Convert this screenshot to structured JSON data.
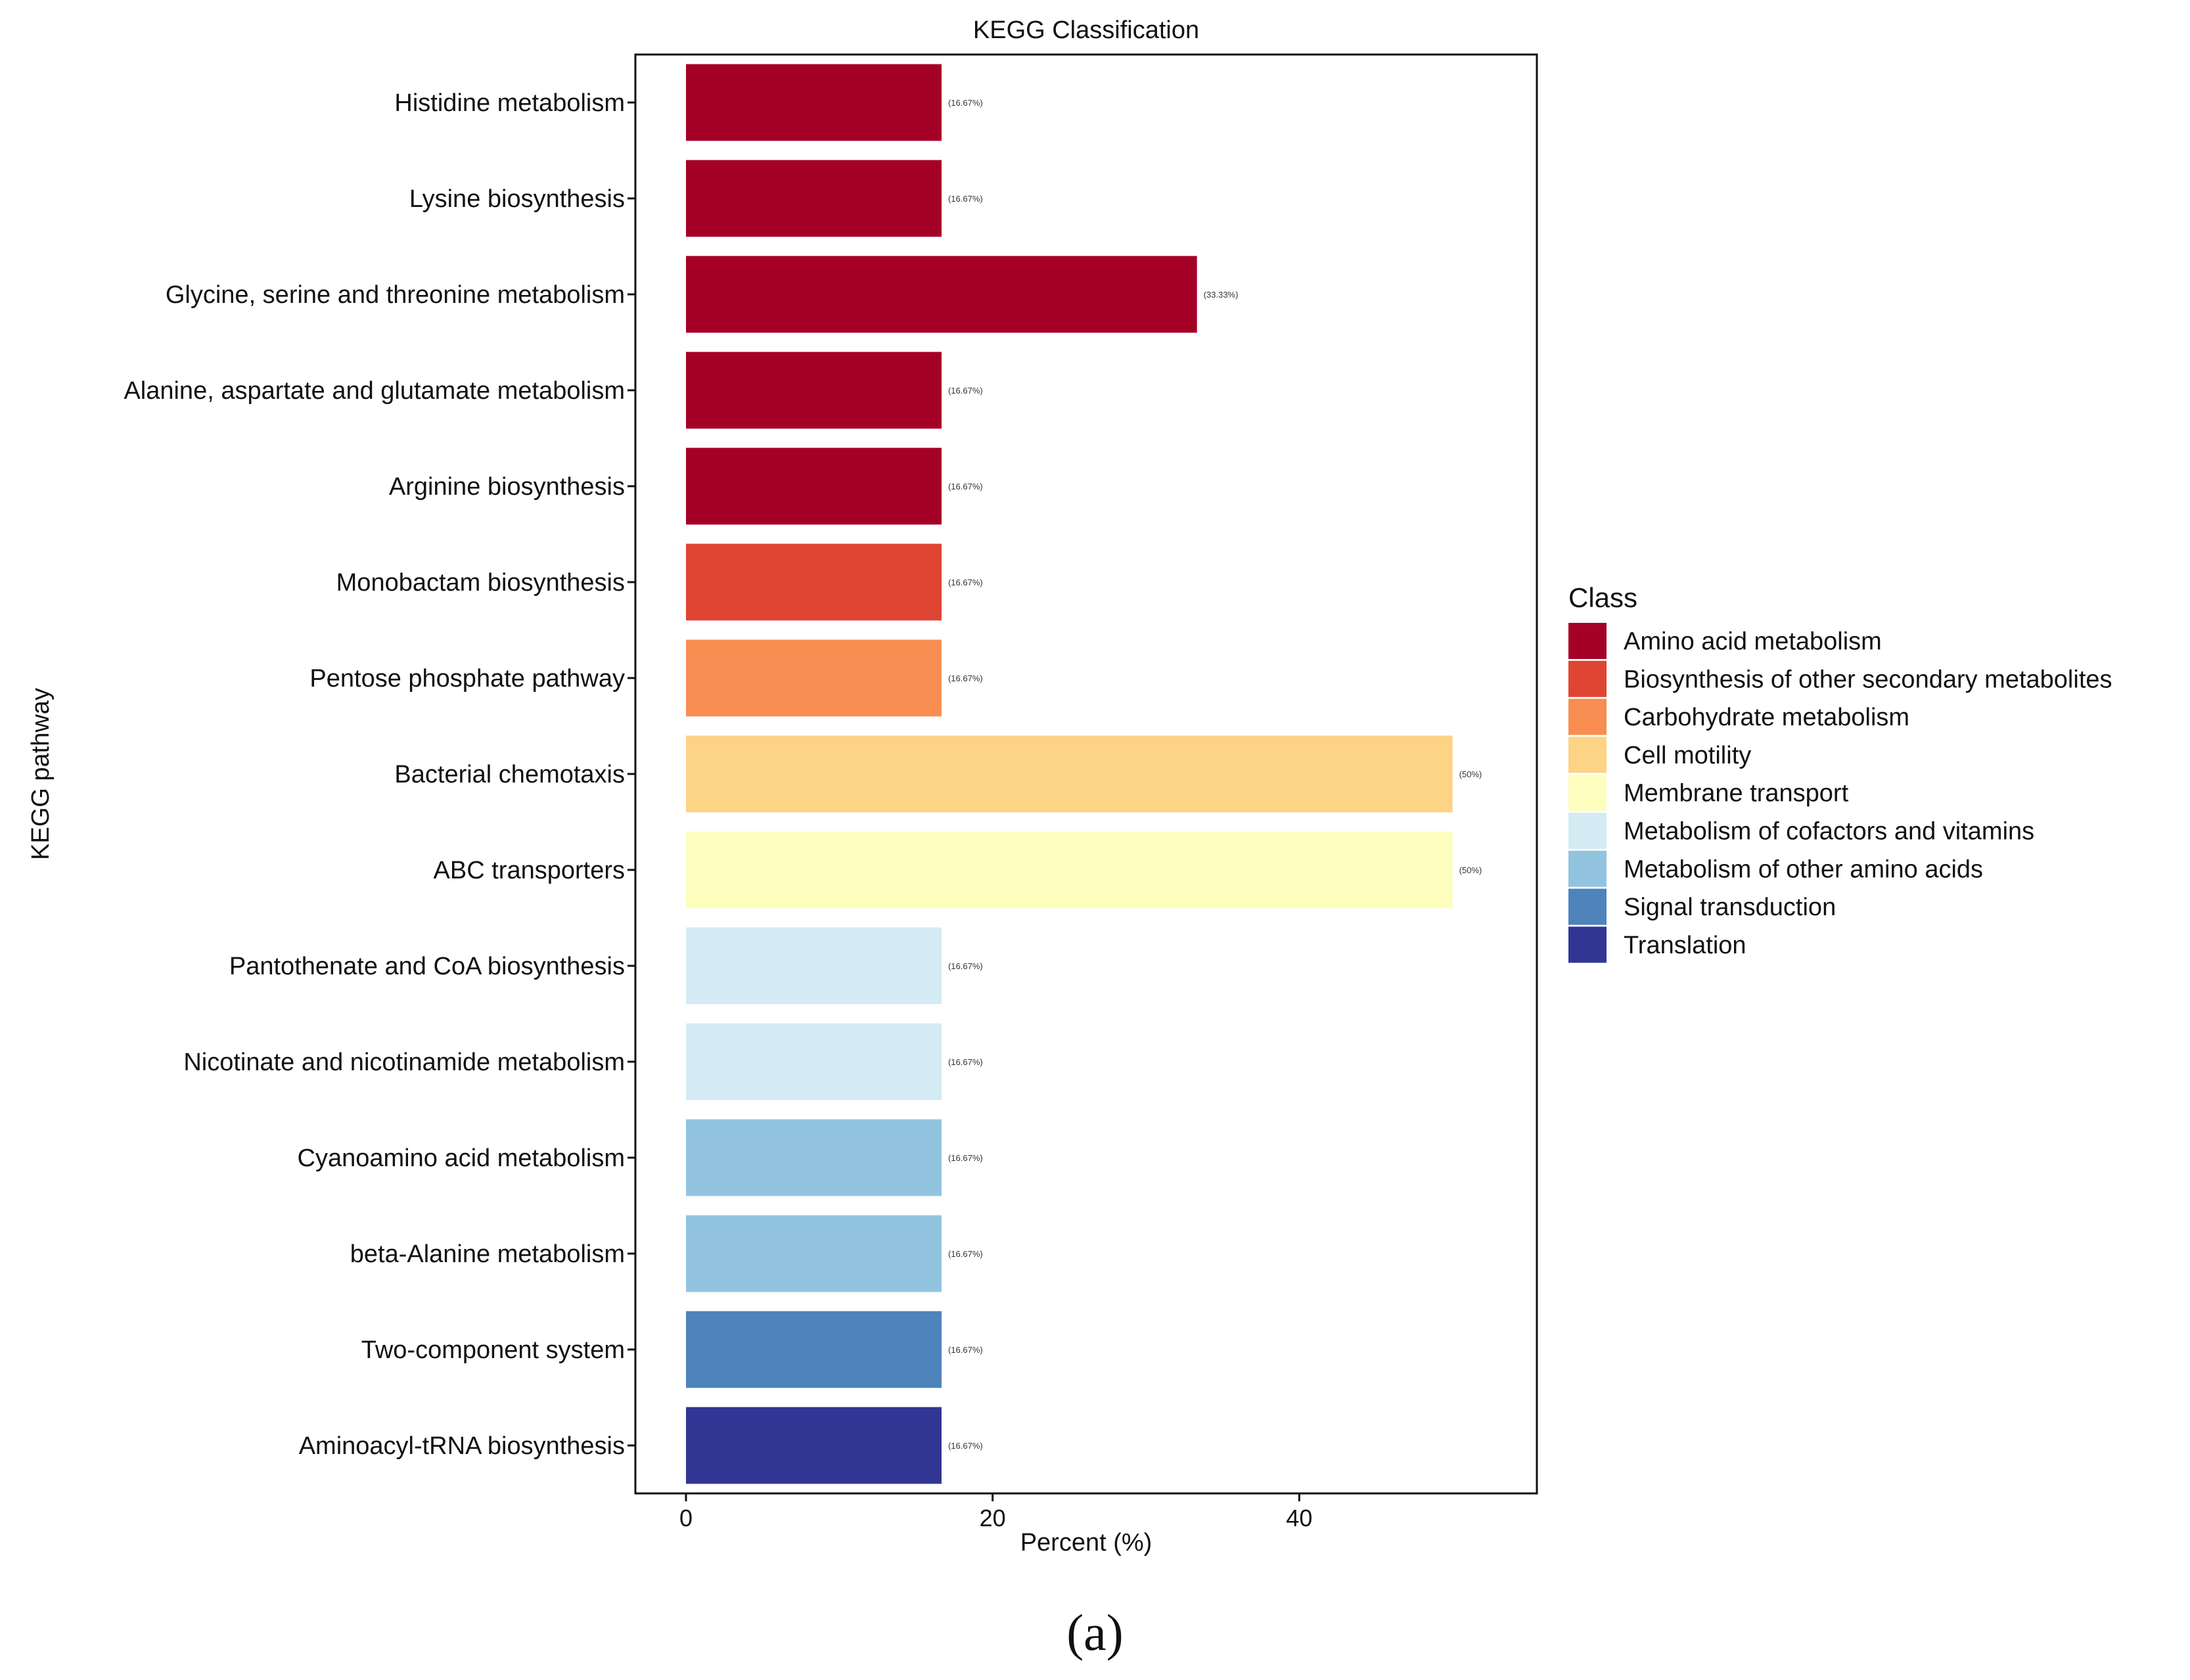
{
  "chart_data": {
    "type": "bar",
    "orientation": "horizontal",
    "title": "KEGG Classification",
    "xlabel": "Percent (%)",
    "ylabel": "KEGG pathway",
    "xlim": [
      -3.3,
      55.5
    ],
    "xticks": [
      0,
      20,
      40
    ],
    "grid": false,
    "categories": [
      "Histidine metabolism",
      "Lysine biosynthesis",
      "Glycine, serine and threonine metabolism",
      "Alanine, aspartate and glutamate metabolism",
      "Arginine biosynthesis",
      "Monobactam biosynthesis",
      "Pentose phosphate pathway",
      "Bacterial chemotaxis",
      "ABC transporters",
      "Pantothenate and CoA biosynthesis",
      "Nicotinate and nicotinamide metabolism",
      "Cyanoamino acid metabolism",
      "beta-Alanine metabolism",
      "Two-component system",
      "Aminoacyl-tRNA biosynthesis"
    ],
    "values": [
      16.67,
      16.67,
      33.33,
      16.67,
      16.67,
      16.67,
      16.67,
      50,
      50,
      16.67,
      16.67,
      16.67,
      16.67,
      16.67,
      16.67
    ],
    "value_labels": [
      "(16.67%)",
      "(16.67%)",
      "(33.33%)",
      "(16.67%)",
      "(16.67%)",
      "(16.67%)",
      "(16.67%)",
      "(50%)",
      "(50%)",
      "(16.67%)",
      "(16.67%)",
      "(16.67%)",
      "(16.67%)",
      "(16.67%)",
      "(16.67%)"
    ],
    "classes": [
      "Amino acid metabolism",
      "Amino acid metabolism",
      "Amino acid metabolism",
      "Amino acid metabolism",
      "Amino acid metabolism",
      "Biosynthesis of other secondary metabolites",
      "Carbohydrate metabolism",
      "Cell motility",
      "Membrane transport",
      "Metabolism of cofactors and vitamins",
      "Metabolism of cofactors and vitamins",
      "Metabolism of other amino acids",
      "Metabolism of other amino acids",
      "Signal transduction",
      "Translation"
    ],
    "legend": {
      "title": "Class",
      "position": "right",
      "entries": [
        {
          "label": "Amino acid metabolism",
          "color": "#a50026"
        },
        {
          "label": "Biosynthesis of other secondary metabolites",
          "color": "#e04432"
        },
        {
          "label": "Carbohydrate metabolism",
          "color": "#f88e52"
        },
        {
          "label": "Cell motility",
          "color": "#fdd385"
        },
        {
          "label": "Membrane transport",
          "color": "#fefebe"
        },
        {
          "label": "Metabolism of cofactors and vitamins",
          "color": "#d4ebf3"
        },
        {
          "label": "Metabolism of other amino acids",
          "color": "#92c4e0"
        },
        {
          "label": "Signal transduction",
          "color": "#4f83bb"
        },
        {
          "label": "Translation",
          "color": "#313695"
        }
      ]
    }
  },
  "caption": "(a)"
}
